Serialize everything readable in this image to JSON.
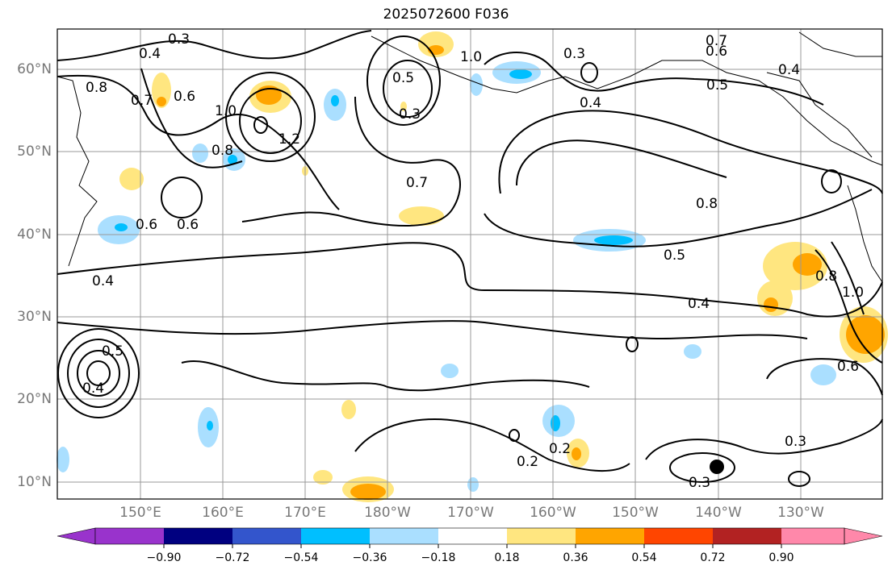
{
  "title": "2025072600 F036",
  "lat_labels": [
    "60°N",
    "50°N",
    "40°N",
    "30°N",
    "20°N",
    "10°N"
  ],
  "lon_labels": [
    "150°E",
    "160°E",
    "170°E",
    "180°W",
    "170°W",
    "160°W",
    "150°W",
    "140°W",
    "130°W"
  ],
  "contour_labels": [
    "0.3",
    "0.4",
    "0.8",
    "0.7",
    "0.6",
    "1.0",
    "1.2",
    "0.8",
    "0.4",
    "0.3",
    "0.3",
    "1.0",
    "0.5",
    "0.4",
    "0.5",
    "0.6",
    "0.7",
    "0.8",
    "0.5",
    "0.4",
    "0.7",
    "0.6",
    "0.6",
    "0.4",
    "0.8",
    "1.0",
    "0.6",
    "0.5",
    "0.4",
    "0.2",
    "0.2",
    "0.3",
    "0.3"
  ],
  "colorbar": {
    "ticks": [
      "−0.90",
      "−0.72",
      "−0.54",
      "−0.36",
      "−0.18",
      "0.18",
      "0.36",
      "0.54",
      "0.72",
      "0.90"
    ],
    "colors": [
      "#9933cc",
      "#000080",
      "#3355cc",
      "#00bfff",
      "#aadfff",
      "#ffffff",
      "#ffe680",
      "#ffa500",
      "#ff4500",
      "#b22222",
      "#ff88aa"
    ]
  },
  "fill_colors": {
    "light_blue": "#aadfff",
    "blue": "#00bfff",
    "yellow": "#ffe680",
    "orange": "#ffa500",
    "red": "#ff4500"
  }
}
